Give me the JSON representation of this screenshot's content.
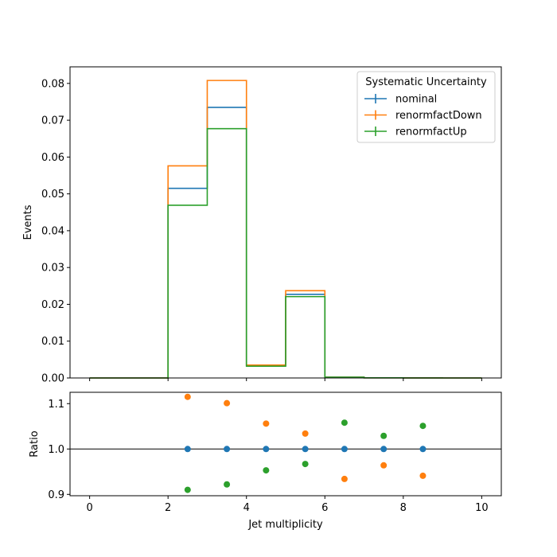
{
  "chart_data": [
    {
      "type": "step",
      "ylabel": "Events",
      "xlim": [
        -0.5,
        10.5
      ],
      "ylim": [
        0,
        0.0845
      ],
      "xticks": [
        0,
        2,
        4,
        6,
        8,
        10
      ],
      "yticks": [
        "0.00",
        "0.01",
        "0.02",
        "0.03",
        "0.04",
        "0.05",
        "0.06",
        "0.07",
        "0.08"
      ],
      "bin_edges": [
        0,
        1,
        2,
        3,
        4,
        5,
        6,
        7,
        8,
        9,
        10
      ],
      "legend": {
        "title": "Systematic Uncertainty",
        "placement": "top-right"
      },
      "series": [
        {
          "name": "nominal",
          "color": "#1f77b4",
          "values": [
            0.0,
            0.0,
            0.0515,
            0.0735,
            0.0033,
            0.0227,
            0.0002,
            5e-05,
            2e-05,
            0.0
          ]
        },
        {
          "name": "renormfactDown",
          "color": "#ff7f0e",
          "values": [
            0.0,
            0.0,
            0.0576,
            0.0808,
            0.0035,
            0.0237,
            0.0002,
            5e-05,
            2e-05,
            0.0
          ]
        },
        {
          "name": "renormfactUp",
          "color": "#2ca02c",
          "values": [
            0.0,
            0.0,
            0.0469,
            0.0677,
            0.0032,
            0.0221,
            0.0002,
            5e-05,
            2e-05,
            0.0
          ]
        }
      ]
    },
    {
      "type": "scatter",
      "xlabel": "Jet multiplicity",
      "ylabel": "Ratio",
      "xlim": [
        -0.5,
        10.5
      ],
      "ylim": [
        0.897,
        1.125
      ],
      "xticks": [
        "0",
        "2",
        "4",
        "6",
        "8",
        "10"
      ],
      "yticks": [
        "0.9",
        "1.0",
        "1.1"
      ],
      "reference_line": 1.0,
      "x": [
        2.5,
        3.5,
        4.5,
        5.5,
        6.5,
        7.5,
        8.5
      ],
      "series": [
        {
          "name": "nominal",
          "color": "#1f77b4",
          "values": [
            1.0,
            1.0,
            1.0,
            1.0,
            1.0,
            1.0,
            1.0
          ]
        },
        {
          "name": "renormfactDown",
          "color": "#ff7f0e",
          "values": [
            1.115,
            1.101,
            1.056,
            1.034,
            0.934,
            0.964,
            0.941
          ]
        },
        {
          "name": "renormfactUp",
          "color": "#2ca02c",
          "values": [
            0.91,
            0.922,
            0.953,
            0.967,
            1.058,
            1.029,
            1.051
          ]
        }
      ]
    }
  ]
}
